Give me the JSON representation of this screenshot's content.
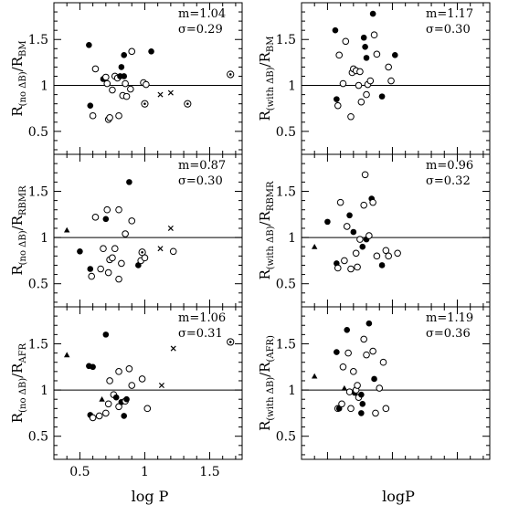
{
  "chart_data": {
    "type": "scatter",
    "layout": "3 rows x 2 columns of panels",
    "xlim": [
      0.3,
      1.75
    ],
    "ylim": [
      0.25,
      1.9
    ],
    "x_ticks": [
      "0.5",
      "1",
      "1.5"
    ],
    "y_ticks": [
      "0.5",
      "1",
      "1.5"
    ],
    "reference_line_y": 1,
    "left_xlabel": "log  P",
    "right_xlabel": "logP",
    "marker_legend": {
      "filled": "filled circle",
      "open": "open circle",
      "cross": "x mark",
      "triangle": "filled triangle",
      "circled_dot": "open circle with dot"
    },
    "panels": [
      {
        "id": "r-noab-bm",
        "ylabel": {
          "main": "R",
          "sub": "(no ΔB)",
          "slash": "/R",
          "sub2": "BM"
        },
        "stats": {
          "m": "m=1.04",
          "sigma": "σ=0.29"
        },
        "points": [
          {
            "x": 0.57,
            "y": 1.44,
            "m": "filled"
          },
          {
            "x": 0.58,
            "y": 0.78,
            "m": "filled"
          },
          {
            "x": 0.62,
            "y": 1.18,
            "m": "open"
          },
          {
            "x": 0.6,
            "y": 0.67,
            "m": "open"
          },
          {
            "x": 0.68,
            "y": 1.07,
            "m": "filled"
          },
          {
            "x": 0.7,
            "y": 1.09,
            "m": "open"
          },
          {
            "x": 0.71,
            "y": 1.02,
            "m": "open"
          },
          {
            "x": 0.72,
            "y": 0.63,
            "m": "open"
          },
          {
            "x": 0.73,
            "y": 0.65,
            "m": "open"
          },
          {
            "x": 0.75,
            "y": 0.95,
            "m": "open"
          },
          {
            "x": 0.77,
            "y": 1.1,
            "m": "open"
          },
          {
            "x": 0.79,
            "y": 1.08,
            "m": "open"
          },
          {
            "x": 0.81,
            "y": 1.1,
            "m": "filled"
          },
          {
            "x": 0.82,
            "y": 1.2,
            "m": "filled"
          },
          {
            "x": 0.84,
            "y": 1.33,
            "m": "filled"
          },
          {
            "x": 0.83,
            "y": 0.89,
            "m": "open"
          },
          {
            "x": 0.84,
            "y": 1.1,
            "m": "filled"
          },
          {
            "x": 0.8,
            "y": 0.67,
            "m": "open"
          },
          {
            "x": 0.85,
            "y": 1.02,
            "m": "open"
          },
          {
            "x": 0.86,
            "y": 0.88,
            "m": "open"
          },
          {
            "x": 0.89,
            "y": 0.96,
            "m": "open"
          },
          {
            "x": 0.9,
            "y": 1.37,
            "m": "open"
          },
          {
            "x": 0.99,
            "y": 1.03,
            "m": "open"
          },
          {
            "x": 1.01,
            "y": 1.01,
            "m": "open"
          },
          {
            "x": 1.05,
            "y": 1.37,
            "m": "filled"
          },
          {
            "x": 1.0,
            "y": 0.8,
            "m": "circled_dot"
          },
          {
            "x": 1.12,
            "y": 0.9,
            "m": "cross"
          },
          {
            "x": 1.2,
            "y": 0.92,
            "m": "cross"
          },
          {
            "x": 1.33,
            "y": 0.8,
            "m": "circled_dot"
          },
          {
            "x": 1.66,
            "y": 1.12,
            "m": "circled_dot"
          }
        ]
      },
      {
        "id": "r-withab-bm",
        "ylabel": {
          "main": "R",
          "sub": "(with ΔB)",
          "slash": "/R",
          "sub2": "BM"
        },
        "stats": {
          "m": "m=1.17",
          "sigma": "σ=0.30"
        },
        "points": [
          {
            "x": 0.56,
            "y": 1.6,
            "m": "filled"
          },
          {
            "x": 0.57,
            "y": 0.85,
            "m": "filled"
          },
          {
            "x": 0.58,
            "y": 0.78,
            "m": "open"
          },
          {
            "x": 0.59,
            "y": 1.33,
            "m": "open"
          },
          {
            "x": 0.62,
            "y": 1.02,
            "m": "open"
          },
          {
            "x": 0.64,
            "y": 1.48,
            "m": "open"
          },
          {
            "x": 0.68,
            "y": 0.66,
            "m": "open"
          },
          {
            "x": 0.69,
            "y": 1.14,
            "m": "open"
          },
          {
            "x": 0.7,
            "y": 1.18,
            "m": "open"
          },
          {
            "x": 0.72,
            "y": 1.16,
            "m": "open"
          },
          {
            "x": 0.74,
            "y": 1.0,
            "m": "open"
          },
          {
            "x": 0.75,
            "y": 1.15,
            "m": "open"
          },
          {
            "x": 0.76,
            "y": 0.82,
            "m": "open"
          },
          {
            "x": 0.78,
            "y": 1.52,
            "m": "filled"
          },
          {
            "x": 0.79,
            "y": 1.42,
            "m": "filled"
          },
          {
            "x": 0.8,
            "y": 1.3,
            "m": "filled"
          },
          {
            "x": 0.8,
            "y": 0.9,
            "m": "open"
          },
          {
            "x": 0.81,
            "y": 1.01,
            "m": "open"
          },
          {
            "x": 0.83,
            "y": 1.05,
            "m": "open"
          },
          {
            "x": 0.85,
            "y": 1.78,
            "m": "filled"
          },
          {
            "x": 0.86,
            "y": 1.55,
            "m": "open"
          },
          {
            "x": 0.88,
            "y": 1.34,
            "m": "open"
          },
          {
            "x": 0.92,
            "y": 0.88,
            "m": "filled"
          },
          {
            "x": 0.97,
            "y": 1.2,
            "m": "open"
          },
          {
            "x": 0.99,
            "y": 1.05,
            "m": "open"
          },
          {
            "x": 1.02,
            "y": 1.33,
            "m": "filled"
          }
        ]
      },
      {
        "id": "r-noab-rbmr",
        "ylabel": {
          "main": "R",
          "sub": "(no ΔB)",
          "slash": "/R",
          "sub2": "RBMR"
        },
        "stats": {
          "m": "m=0.87",
          "sigma": "σ=0.30"
        },
        "points": [
          {
            "x": 0.4,
            "y": 1.08,
            "m": "triangle"
          },
          {
            "x": 0.5,
            "y": 0.85,
            "m": "filled"
          },
          {
            "x": 0.58,
            "y": 0.66,
            "m": "filled"
          },
          {
            "x": 0.59,
            "y": 0.58,
            "m": "open"
          },
          {
            "x": 0.62,
            "y": 1.22,
            "m": "open"
          },
          {
            "x": 0.66,
            "y": 0.66,
            "m": "open"
          },
          {
            "x": 0.68,
            "y": 0.88,
            "m": "open"
          },
          {
            "x": 0.7,
            "y": 1.2,
            "m": "filled"
          },
          {
            "x": 0.71,
            "y": 1.3,
            "m": "open"
          },
          {
            "x": 0.72,
            "y": 0.62,
            "m": "open"
          },
          {
            "x": 0.73,
            "y": 0.76,
            "m": "open"
          },
          {
            "x": 0.75,
            "y": 0.78,
            "m": "open"
          },
          {
            "x": 0.77,
            "y": 0.88,
            "m": "open"
          },
          {
            "x": 0.8,
            "y": 1.3,
            "m": "open"
          },
          {
            "x": 0.8,
            "y": 0.55,
            "m": "open"
          },
          {
            "x": 0.82,
            "y": 0.72,
            "m": "open"
          },
          {
            "x": 0.85,
            "y": 1.04,
            "m": "open"
          },
          {
            "x": 0.88,
            "y": 1.6,
            "m": "filled"
          },
          {
            "x": 0.9,
            "y": 1.18,
            "m": "open"
          },
          {
            "x": 0.95,
            "y": 0.7,
            "m": "filled"
          },
          {
            "x": 0.97,
            "y": 0.75,
            "m": "open"
          },
          {
            "x": 0.98,
            "y": 0.84,
            "m": "circled_dot"
          },
          {
            "x": 1.0,
            "y": 0.78,
            "m": "open"
          },
          {
            "x": 1.12,
            "y": 0.88,
            "m": "cross"
          },
          {
            "x": 1.2,
            "y": 1.1,
            "m": "cross"
          },
          {
            "x": 1.22,
            "y": 0.85,
            "m": "open"
          }
        ]
      },
      {
        "id": "r-withab-rbmr",
        "ylabel": {
          "main": "R",
          "sub": "(with ΔB)",
          "slash": "/R",
          "sub2": "RBMR"
        },
        "stats": {
          "m": "m=0.96",
          "sigma": "σ=0.32"
        },
        "points": [
          {
            "x": 0.4,
            "y": 0.9,
            "m": "triangle"
          },
          {
            "x": 0.5,
            "y": 1.17,
            "m": "filled"
          },
          {
            "x": 0.57,
            "y": 0.72,
            "m": "filled"
          },
          {
            "x": 0.58,
            "y": 0.67,
            "m": "open"
          },
          {
            "x": 0.6,
            "y": 1.38,
            "m": "open"
          },
          {
            "x": 0.63,
            "y": 0.75,
            "m": "open"
          },
          {
            "x": 0.65,
            "y": 1.12,
            "m": "open"
          },
          {
            "x": 0.67,
            "y": 1.24,
            "m": "filled"
          },
          {
            "x": 0.68,
            "y": 0.66,
            "m": "open"
          },
          {
            "x": 0.7,
            "y": 1.06,
            "m": "filled"
          },
          {
            "x": 0.72,
            "y": 0.83,
            "m": "open"
          },
          {
            "x": 0.73,
            "y": 0.68,
            "m": "open"
          },
          {
            "x": 0.75,
            "y": 0.98,
            "m": "open"
          },
          {
            "x": 0.77,
            "y": 0.9,
            "m": "filled"
          },
          {
            "x": 0.78,
            "y": 1.35,
            "m": "open"
          },
          {
            "x": 0.79,
            "y": 1.68,
            "m": "open"
          },
          {
            "x": 0.8,
            "y": 0.98,
            "m": "filled"
          },
          {
            "x": 0.82,
            "y": 1.02,
            "m": "open"
          },
          {
            "x": 0.84,
            "y": 1.42,
            "m": "filled"
          },
          {
            "x": 0.85,
            "y": 1.38,
            "m": "open"
          },
          {
            "x": 0.88,
            "y": 0.8,
            "m": "open"
          },
          {
            "x": 0.92,
            "y": 0.7,
            "m": "filled"
          },
          {
            "x": 0.95,
            "y": 0.86,
            "m": "open"
          },
          {
            "x": 0.97,
            "y": 0.8,
            "m": "open"
          },
          {
            "x": 1.04,
            "y": 0.83,
            "m": "open"
          }
        ]
      },
      {
        "id": "r-noab-afr",
        "ylabel": {
          "main": "R",
          "sub": "(no ΔB)",
          "slash": "/R",
          "sub2": "AFR"
        },
        "stats": {
          "m": "m=1.06",
          "sigma": "σ=0.31"
        },
        "points": [
          {
            "x": 0.4,
            "y": 1.38,
            "m": "triangle"
          },
          {
            "x": 0.57,
            "y": 1.26,
            "m": "filled"
          },
          {
            "x": 0.58,
            "y": 0.73,
            "m": "filled"
          },
          {
            "x": 0.6,
            "y": 0.7,
            "m": "open"
          },
          {
            "x": 0.6,
            "y": 1.25,
            "m": "filled"
          },
          {
            "x": 0.65,
            "y": 0.72,
            "m": "open"
          },
          {
            "x": 0.67,
            "y": 0.9,
            "m": "triangle"
          },
          {
            "x": 0.7,
            "y": 1.6,
            "m": "filled"
          },
          {
            "x": 0.7,
            "y": 0.75,
            "m": "open"
          },
          {
            "x": 0.72,
            "y": 0.85,
            "m": "open"
          },
          {
            "x": 0.73,
            "y": 1.1,
            "m": "open"
          },
          {
            "x": 0.76,
            "y": 0.95,
            "m": "open"
          },
          {
            "x": 0.78,
            "y": 0.92,
            "m": "filled"
          },
          {
            "x": 0.8,
            "y": 1.2,
            "m": "open"
          },
          {
            "x": 0.8,
            "y": 0.82,
            "m": "open"
          },
          {
            "x": 0.82,
            "y": 0.87,
            "m": "filled"
          },
          {
            "x": 0.84,
            "y": 0.72,
            "m": "filled"
          },
          {
            "x": 0.85,
            "y": 0.88,
            "m": "open"
          },
          {
            "x": 0.86,
            "y": 0.9,
            "m": "filled"
          },
          {
            "x": 0.88,
            "y": 1.23,
            "m": "open"
          },
          {
            "x": 0.9,
            "y": 1.05,
            "m": "open"
          },
          {
            "x": 0.98,
            "y": 1.12,
            "m": "open"
          },
          {
            "x": 1.02,
            "y": 0.8,
            "m": "open"
          },
          {
            "x": 1.13,
            "y": 1.05,
            "m": "cross"
          },
          {
            "x": 1.22,
            "y": 1.45,
            "m": "cross"
          },
          {
            "x": 1.66,
            "y": 1.52,
            "m": "circled_dot"
          }
        ]
      },
      {
        "id": "r-withab-afr",
        "ylabel": {
          "main": "R",
          "sub": "(with ΔB)",
          "slash": "/R",
          "sub2": "(AFR)"
        },
        "stats": {
          "m": "m=1.19",
          "sigma": "σ=0.36"
        },
        "points": [
          {
            "x": 0.4,
            "y": 1.15,
            "m": "triangle"
          },
          {
            "x": 0.57,
            "y": 1.41,
            "m": "filled"
          },
          {
            "x": 0.58,
            "y": 0.8,
            "m": "open"
          },
          {
            "x": 0.59,
            "y": 0.8,
            "m": "filled"
          },
          {
            "x": 0.61,
            "y": 0.85,
            "m": "open"
          },
          {
            "x": 0.62,
            "y": 1.25,
            "m": "open"
          },
          {
            "x": 0.63,
            "y": 1.02,
            "m": "triangle"
          },
          {
            "x": 0.65,
            "y": 1.65,
            "m": "filled"
          },
          {
            "x": 0.66,
            "y": 1.4,
            "m": "open"
          },
          {
            "x": 0.67,
            "y": 0.98,
            "m": "open"
          },
          {
            "x": 0.68,
            "y": 0.8,
            "m": "open"
          },
          {
            "x": 0.7,
            "y": 1.2,
            "m": "open"
          },
          {
            "x": 0.71,
            "y": 0.97,
            "m": "filled"
          },
          {
            "x": 0.72,
            "y": 1.0,
            "m": "open"
          },
          {
            "x": 0.73,
            "y": 1.05,
            "m": "open"
          },
          {
            "x": 0.74,
            "y": 0.92,
            "m": "open"
          },
          {
            "x": 0.76,
            "y": 0.95,
            "m": "filled"
          },
          {
            "x": 0.76,
            "y": 0.75,
            "m": "filled"
          },
          {
            "x": 0.77,
            "y": 0.85,
            "m": "filled"
          },
          {
            "x": 0.78,
            "y": 1.55,
            "m": "open"
          },
          {
            "x": 0.8,
            "y": 1.38,
            "m": "open"
          },
          {
            "x": 0.82,
            "y": 1.72,
            "m": "filled"
          },
          {
            "x": 0.85,
            "y": 1.42,
            "m": "open"
          },
          {
            "x": 0.86,
            "y": 1.12,
            "m": "filled"
          },
          {
            "x": 0.87,
            "y": 0.75,
            "m": "open"
          },
          {
            "x": 0.9,
            "y": 1.02,
            "m": "open"
          },
          {
            "x": 0.93,
            "y": 1.3,
            "m": "open"
          },
          {
            "x": 0.95,
            "y": 0.8,
            "m": "open"
          }
        ]
      }
    ]
  }
}
